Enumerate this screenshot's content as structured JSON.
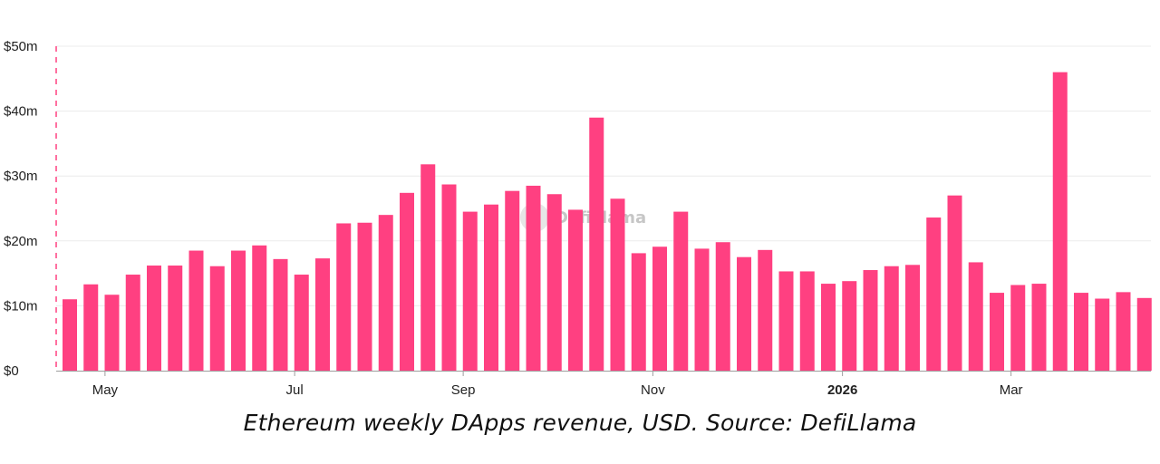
{
  "chart_data": {
    "type": "bar",
    "title": "Ethereum weekly DApps revenue, USD. Source: DefiLlama",
    "xlabel": "",
    "ylabel": "",
    "units": "USD millions",
    "ylim": [
      0,
      50
    ],
    "grid": true,
    "y_ticks": [
      {
        "value": 0,
        "label": "$0"
      },
      {
        "value": 10,
        "label": "$10m"
      },
      {
        "value": 20,
        "label": "$20m"
      },
      {
        "value": 30,
        "label": "$30m"
      },
      {
        "value": 40,
        "label": "$40m"
      },
      {
        "value": 50,
        "label": "$50m"
      }
    ],
    "x_ticks": [
      {
        "bar_index": 2,
        "label": "May",
        "bold": false
      },
      {
        "bar_index": 11,
        "label": "Jul",
        "bold": false
      },
      {
        "bar_index": 19,
        "label": "Sep",
        "bold": false
      },
      {
        "bar_index": 28,
        "label": "Nov",
        "bold": false
      },
      {
        "bar_index": 37,
        "label": "2026",
        "bold": true
      },
      {
        "bar_index": 45,
        "label": "Mar",
        "bold": false
      }
    ],
    "series": [
      {
        "name": "Weekly DApps revenue",
        "color": "#ff4081",
        "values": [
          11.0,
          13.3,
          11.7,
          14.8,
          16.2,
          16.2,
          18.5,
          16.1,
          18.5,
          19.3,
          17.2,
          14.8,
          17.3,
          22.7,
          22.8,
          24.0,
          27.4,
          31.8,
          28.7,
          24.5,
          25.6,
          27.7,
          28.5,
          27.2,
          24.8,
          39.0,
          26.5,
          18.1,
          19.1,
          24.5,
          18.8,
          19.8,
          17.5,
          18.6,
          15.3,
          15.3,
          13.4,
          13.8,
          15.5,
          16.1,
          16.3,
          23.6,
          27.0,
          16.7,
          12.0,
          13.2,
          13.4,
          46.0,
          12.0,
          11.1,
          12.1,
          11.2
        ]
      }
    ],
    "watermark": "DefiLlama"
  },
  "caption": "Ethereum weekly DApps revenue, USD. Source: DefiLlama"
}
